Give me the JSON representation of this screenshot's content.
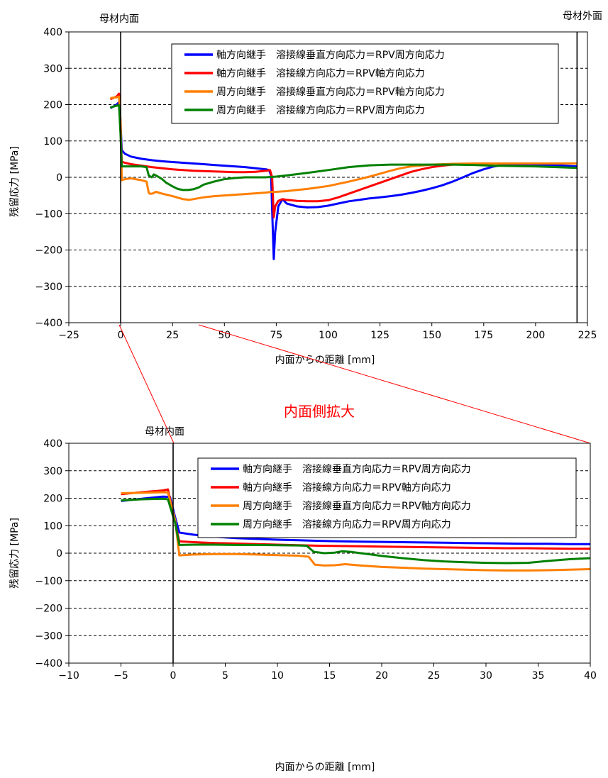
{
  "annotations": {
    "inner_surface": "母材内面",
    "outer_surface": "母材外面",
    "zoom_title": "内面側拡大"
  },
  "colors": {
    "s1": "#0000ff",
    "s2": "#ff0000",
    "s3": "#ff7f00",
    "s4": "#008000",
    "zoom_lines": "#ff0000"
  },
  "chart_data": [
    {
      "type": "line",
      "xlabel": "内面からの距離 [mm]",
      "ylabel": "残留応力 [MPa]",
      "xlim": [
        -25,
        225
      ],
      "ylim": [
        -400,
        400
      ],
      "xticks": [
        -25,
        0,
        25,
        50,
        75,
        100,
        125,
        150,
        175,
        200,
        225
      ],
      "yticks": [
        -400,
        -300,
        -200,
        -100,
        0,
        100,
        200,
        300,
        400
      ],
      "grid": "horizontal dashed",
      "legend_position": "top-right",
      "vertical_markers": [
        0,
        220
      ],
      "series": [
        {
          "name": "軸方向継手 溶接線垂直方向応力＝RPV周方向応力",
          "color": "#0000ff",
          "x": [
            -5,
            -2,
            -0.5,
            0,
            0.5,
            2,
            5,
            10,
            15,
            20,
            25,
            30,
            35,
            40,
            45,
            50,
            55,
            60,
            65,
            70,
            71.5,
            72.5,
            73.2,
            73.8,
            74.5,
            76,
            78,
            80,
            85,
            90,
            95,
            100,
            105,
            110,
            115,
            120,
            125,
            130,
            135,
            140,
            145,
            150,
            155,
            160,
            165,
            170,
            175,
            180,
            185,
            190,
            200,
            210,
            220
          ],
          "y": [
            190,
            200,
            208,
            140,
            75,
            65,
            57,
            51,
            47,
            44,
            42,
            40,
            38,
            36,
            34,
            32,
            30,
            28,
            25,
            22,
            20,
            5,
            -120,
            -225,
            -150,
            -80,
            -60,
            -72,
            -80,
            -83,
            -82,
            -78,
            -72,
            -66,
            -62,
            -58,
            -55,
            -52,
            -48,
            -43,
            -37,
            -30,
            -22,
            -12,
            0,
            12,
            22,
            30,
            35,
            36,
            35,
            33,
            30
          ]
        },
        {
          "name": "軸方向継手 溶接線方向応力＝RPV軸方向応力",
          "color": "#ff0000",
          "x": [
            -5,
            -2,
            -0.8,
            0,
            0.5,
            2,
            5,
            10,
            15,
            20,
            25,
            30,
            35,
            40,
            45,
            50,
            55,
            60,
            65,
            70,
            72,
            73,
            73.8,
            74.5,
            76,
            78,
            80,
            85,
            90,
            95,
            100,
            105,
            110,
            115,
            120,
            125,
            130,
            135,
            140,
            145,
            150,
            155,
            160,
            170,
            180,
            190,
            200,
            210,
            220
          ],
          "y": [
            215,
            222,
            230,
            120,
            43,
            40,
            36,
            32,
            28,
            25,
            22,
            20,
            18,
            17,
            16,
            15,
            14,
            14,
            15,
            18,
            20,
            0,
            -110,
            -80,
            -65,
            -60,
            -62,
            -65,
            -66,
            -66,
            -63,
            -55,
            -45,
            -35,
            -25,
            -15,
            -5,
            5,
            15,
            22,
            28,
            32,
            35,
            37,
            38,
            38,
            38,
            38,
            38
          ]
        },
        {
          "name": "周方向継手 溶接線垂直方向応力＝RPV軸方向応力",
          "color": "#ff7f00",
          "x": [
            -5,
            -2,
            -0.8,
            0,
            0.5,
            2,
            5,
            10,
            12.5,
            13.5,
            14,
            15,
            16,
            17,
            20,
            25,
            30,
            33,
            35,
            40,
            45,
            50,
            55,
            60,
            65,
            70,
            73,
            75,
            80,
            85,
            90,
            95,
            100,
            105,
            110,
            115,
            120,
            125,
            130,
            135,
            140,
            150,
            160,
            170,
            180,
            190,
            200,
            210,
            220
          ],
          "y": [
            218,
            220,
            222,
            150,
            -8,
            -5,
            -3,
            -8,
            -12,
            -42,
            -45,
            -45,
            -43,
            -40,
            -45,
            -52,
            -60,
            -62,
            -60,
            -55,
            -52,
            -50,
            -48,
            -46,
            -44,
            -42,
            -40,
            -40,
            -38,
            -35,
            -32,
            -28,
            -24,
            -18,
            -12,
            -5,
            2,
            10,
            18,
            25,
            30,
            35,
            37,
            38,
            38,
            38,
            38,
            38,
            38
          ]
        },
        {
          "name": "周方向継手 溶接線方向応力＝RPV周方向応力",
          "color": "#008000",
          "x": [
            -5,
            -2,
            -0.8,
            0,
            0.5,
            2,
            5,
            10,
            12.5,
            13.5,
            15,
            16,
            17,
            18,
            20,
            22,
            25,
            27.5,
            30,
            32.5,
            35,
            37.5,
            40,
            45,
            50,
            55,
            60,
            65,
            70,
            75,
            80,
            90,
            100,
            110,
            120,
            130,
            140,
            150,
            160,
            170,
            180,
            190,
            200,
            210,
            220
          ],
          "y": [
            192,
            197,
            198,
            110,
            30,
            30,
            30,
            30,
            28,
            5,
            0,
            8,
            5,
            2,
            -5,
            -15,
            -25,
            -32,
            -35,
            -35,
            -33,
            -28,
            -20,
            -12,
            -5,
            -2,
            0,
            0,
            0,
            2,
            5,
            12,
            20,
            28,
            33,
            35,
            35,
            35,
            35,
            34,
            32,
            31,
            30,
            28,
            26
          ]
        }
      ]
    },
    {
      "type": "line",
      "xlabel": "内面からの距離 [mm]",
      "ylabel": "残留応力 [MPa]",
      "xlim": [
        -10,
        40
      ],
      "ylim": [
        -400,
        400
      ],
      "xticks": [
        -10,
        -5,
        0,
        5,
        10,
        15,
        20,
        25,
        30,
        35,
        40
      ],
      "yticks": [
        -400,
        -300,
        -200,
        -100,
        0,
        100,
        200,
        300,
        400
      ],
      "grid": "horizontal dashed",
      "legend_position": "top-right",
      "vertical_markers": [
        0
      ],
      "series": [
        {
          "name": "軸方向継手 溶接線垂直方向応力＝RPV周方向応力",
          "color": "#0000ff",
          "x": [
            -5,
            -3,
            -1,
            -0.3,
            0.2,
            0.6,
            2,
            4,
            6,
            8,
            10,
            12,
            14,
            16,
            18,
            20,
            22,
            24,
            26,
            28,
            30,
            32,
            34,
            36,
            38,
            40
          ],
          "y": [
            190,
            198,
            206,
            205,
            130,
            75,
            67,
            60,
            55,
            52,
            49,
            47,
            45,
            43,
            42,
            41,
            40,
            39,
            38,
            37,
            36,
            35,
            34,
            34,
            33,
            33
          ]
        },
        {
          "name": "軸方向継手 溶接線方向応力＝RPV軸方向応力",
          "color": "#ff0000",
          "x": [
            -5,
            -3,
            -1,
            -0.5,
            0.2,
            0.6,
            2,
            4,
            6,
            8,
            10,
            12,
            14,
            16,
            18,
            20,
            22,
            24,
            26,
            28,
            30,
            32,
            34,
            36,
            38,
            40
          ],
          "y": [
            215,
            222,
            228,
            232,
            110,
            43,
            40,
            37,
            35,
            33,
            31,
            29,
            27,
            26,
            25,
            24,
            23,
            22,
            21,
            20,
            19,
            18,
            18,
            17,
            16,
            16
          ]
        },
        {
          "name": "周方向継手 溶接線垂直方向応力＝RPV軸方向応力",
          "color": "#ff7f00",
          "x": [
            -5,
            -3,
            -1,
            -0.5,
            0.2,
            0.6,
            2,
            4,
            6,
            8,
            10,
            12,
            13,
            13.6,
            14.5,
            15.5,
            16.5,
            18,
            20,
            22,
            24,
            26,
            28,
            30,
            32,
            34,
            36,
            38,
            40
          ],
          "y": [
            218,
            220,
            222,
            221,
            120,
            -8,
            -5,
            -3,
            -3,
            -5,
            -7,
            -9,
            -13,
            -42,
            -45,
            -44,
            -40,
            -45,
            -50,
            -53,
            -56,
            -58,
            -60,
            -62,
            -63,
            -63,
            -62,
            -60,
            -58
          ]
        },
        {
          "name": "周方向継手 溶接線方向応力＝RPV周方向応力",
          "color": "#008000",
          "x": [
            -5,
            -3,
            -1,
            -0.5,
            0.2,
            0.6,
            2,
            4,
            6,
            8,
            10,
            12,
            12.8,
            13.5,
            14.5,
            15.5,
            16.2,
            17,
            18,
            19,
            20,
            22,
            24,
            26,
            28,
            30,
            32,
            34,
            36,
            38,
            40
          ],
          "y": [
            192,
            196,
            198,
            196,
            110,
            30,
            31,
            31,
            30,
            30,
            29,
            28,
            27,
            5,
            0,
            2,
            7,
            5,
            0,
            -5,
            -10,
            -18,
            -25,
            -30,
            -33,
            -35,
            -36,
            -35,
            -28,
            -22,
            -18
          ]
        }
      ]
    }
  ]
}
